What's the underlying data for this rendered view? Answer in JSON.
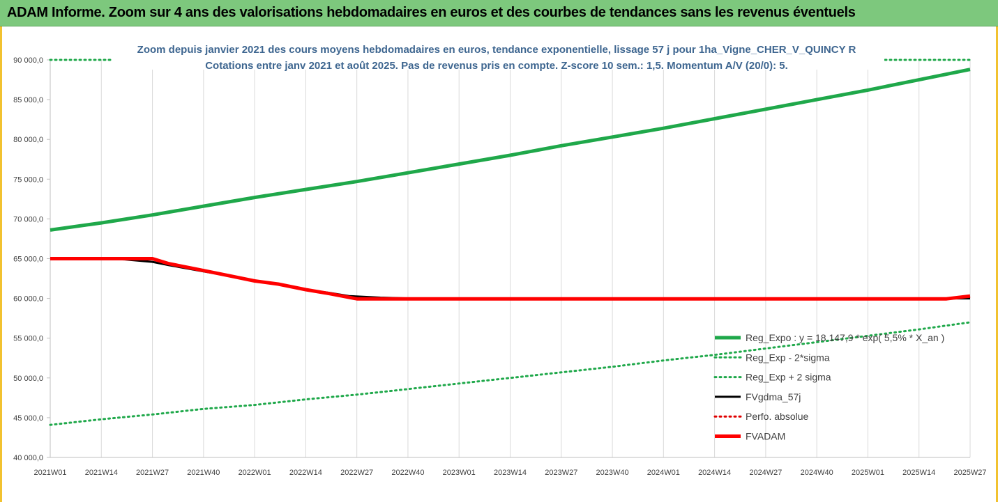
{
  "banner": {
    "title": "ADAM Informe. Zoom sur 4 ans des valorisations hebdomadaires en euros et des courbes de tendances sans les revenus éventuels"
  },
  "colors": {
    "banner_bg": "#7dc87d",
    "frame_border": "#f2c230",
    "title_text": "#3e6690",
    "reg_expo": "#1fa84a",
    "fvgdma": "#000000",
    "perfo": "#e00000",
    "fvadam": "#ff0000"
  },
  "chart_data": {
    "type": "line",
    "title_line1": "Zoom depuis janvier 2021 des cours moyens hebdomadaires en euros, tendance exponentielle, lissage 57 j pour 1ha_Vigne_CHER_V_QUINCY R",
    "title_line2": "Cotations entre janv 2021 et août 2025.  Pas de revenus pris en compte. Z-score 10 sem.: 1,5. Momentum A/V (20/0): 5.",
    "ylim": [
      40000,
      90000
    ],
    "yticks": [
      "40 000,0",
      "45 000,0",
      "50 000,0",
      "55 000,0",
      "60 000,0",
      "65 000,0",
      "70 000,0",
      "75 000,0",
      "80 000,0",
      "85 000,0",
      "90 000,0"
    ],
    "xticks": [
      "2021W01",
      "2021W14",
      "2021W27",
      "2021W40",
      "2022W01",
      "2022W14",
      "2022W27",
      "2022W40",
      "2023W01",
      "2023W14",
      "2023W27",
      "2023W40",
      "2024W01",
      "2024W14",
      "2024W27",
      "2024W40",
      "2025W01",
      "2025W14",
      "2025W27"
    ],
    "grid": "vertical",
    "legend_position": "bottom-right",
    "series": [
      {
        "name": "Reg_Expo : y = 18 147,9 * exp( 5,5% *  X_an )",
        "style": "solid-thick",
        "color": "#1fa84a",
        "points": [
          [
            0,
            68600
          ],
          [
            13,
            69500
          ],
          [
            26,
            70500
          ],
          [
            39,
            71600
          ],
          [
            52,
            72700
          ],
          [
            65,
            73700
          ],
          [
            78,
            74700
          ],
          [
            91,
            75800
          ],
          [
            104,
            76900
          ],
          [
            117,
            78000
          ],
          [
            130,
            79200
          ],
          [
            143,
            80300
          ],
          [
            156,
            81400
          ],
          [
            169,
            82600
          ],
          [
            182,
            83800
          ],
          [
            195,
            85000
          ],
          [
            208,
            86200
          ],
          [
            221,
            87500
          ],
          [
            234,
            88800
          ]
        ]
      },
      {
        "name": "Reg_Exp - 2*sigma",
        "style": "dotted",
        "color": "#1fa84a",
        "points": [
          [
            0,
            44100
          ],
          [
            13,
            44800
          ],
          [
            26,
            45400
          ],
          [
            39,
            46100
          ],
          [
            52,
            46600
          ],
          [
            65,
            47300
          ],
          [
            78,
            47900
          ],
          [
            91,
            48600
          ],
          [
            104,
            49300
          ],
          [
            117,
            50000
          ],
          [
            130,
            50700
          ],
          [
            143,
            51400
          ],
          [
            156,
            52200
          ],
          [
            169,
            52900
          ],
          [
            182,
            53700
          ],
          [
            195,
            54500
          ],
          [
            208,
            55300
          ],
          [
            221,
            56100
          ],
          [
            234,
            57000
          ]
        ]
      },
      {
        "name": "Reg_Exp + 2 sigma",
        "style": "dotted",
        "color": "#1fa84a",
        "points": [
          [
            0,
            90000
          ],
          [
            234,
            90000
          ]
        ]
      },
      {
        "name": "FVgdma_57j",
        "style": "solid",
        "color": "#000000",
        "points": [
          [
            0,
            65000
          ],
          [
            13,
            65000
          ],
          [
            19,
            64900
          ],
          [
            26,
            64600
          ],
          [
            30,
            64200
          ],
          [
            39,
            63400
          ],
          [
            46,
            62800
          ],
          [
            52,
            62200
          ],
          [
            58,
            61800
          ],
          [
            65,
            61100
          ],
          [
            71,
            60700
          ],
          [
            76,
            60300
          ],
          [
            84,
            60100
          ],
          [
            91,
            60000
          ],
          [
            234,
            60000
          ]
        ]
      },
      {
        "name": "Perfo. absolue",
        "style": "dotted",
        "color": "#e00000",
        "points": []
      },
      {
        "name": "FVADAM",
        "style": "solid-thick",
        "color": "#ff0000",
        "points": [
          [
            0,
            65000
          ],
          [
            26,
            65000
          ],
          [
            30,
            64400
          ],
          [
            39,
            63500
          ],
          [
            46,
            62800
          ],
          [
            52,
            62200
          ],
          [
            58,
            61800
          ],
          [
            65,
            61100
          ],
          [
            71,
            60600
          ],
          [
            78,
            59950
          ],
          [
            91,
            59950
          ],
          [
            228,
            59950
          ],
          [
            234,
            60300
          ]
        ]
      }
    ]
  }
}
